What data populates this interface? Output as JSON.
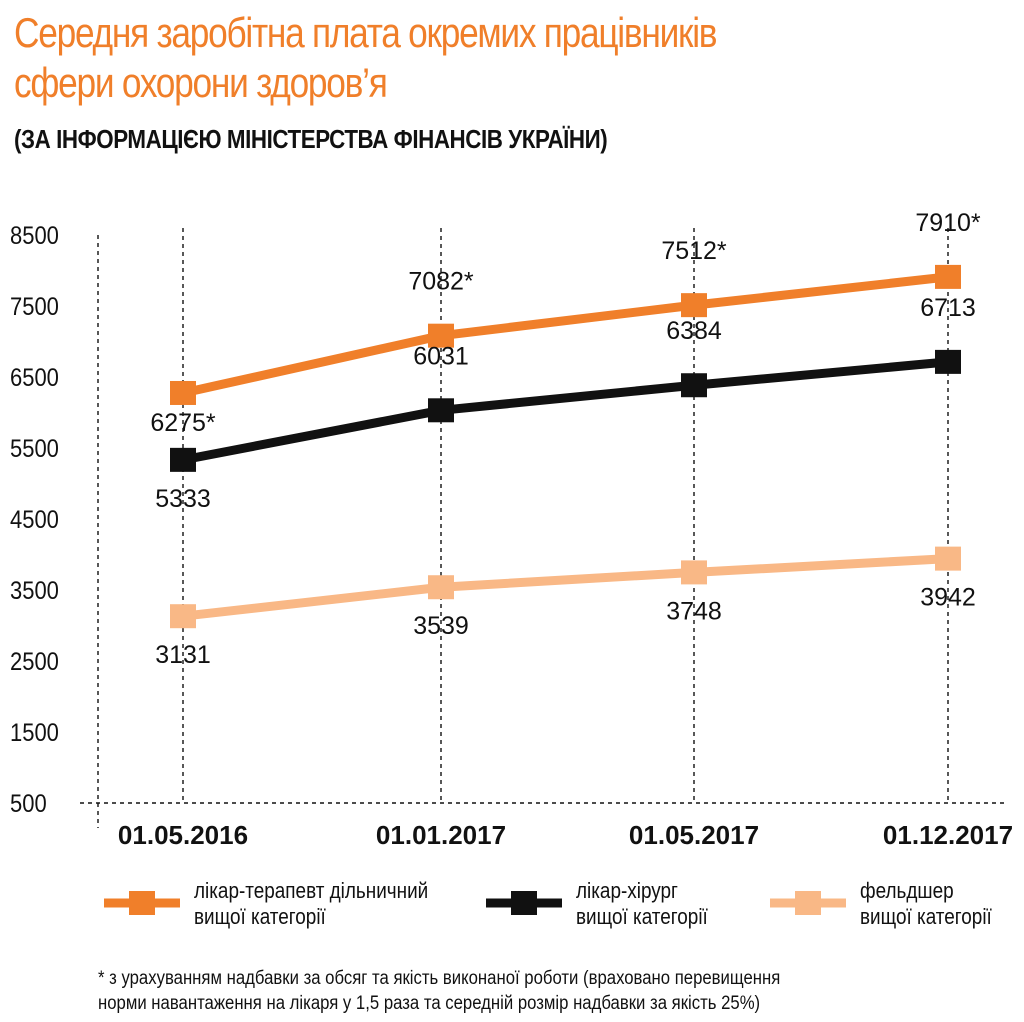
{
  "title_line1": "Середня заробітна плата окремих працівників",
  "title_line2": "сфери охорони здоров’я",
  "subtitle": "(ЗА ІНФОРМАЦІЄЮ МІНІСТЕРСТВА ФІНАНСІВ УКРАЇНИ)",
  "footnote_line1": "* з урахуванням надбавки за обсяг та якість виконаної роботи (враховано перевищення",
  "footnote_line2": "норми навантаження на лікаря у 1,5 раза та середній розмір надбавки за якість 25%)",
  "legend": [
    {
      "line1": "лікар-терапевт дільничний",
      "line2": "вищої категорії",
      "color": "#f07f2a"
    },
    {
      "line1": "лікар-хірург",
      "line2": "вищої категорії",
      "color": "#111111"
    },
    {
      "line1": "фельдшер",
      "line2": "вищої категорії",
      "color": "#f9b886"
    }
  ],
  "chart_data": {
    "type": "line",
    "x": [
      "01.05.2016",
      "01.01.2017",
      "01.05.2017",
      "01.12.2017"
    ],
    "yticks": [
      500,
      1500,
      2500,
      3500,
      4500,
      5500,
      6500,
      7500,
      8500
    ],
    "ylim": [
      500,
      8500
    ],
    "grid": "vertical dashed",
    "legend_position": "bottom",
    "series": [
      {
        "name": "лікар-терапевт дільничний вищої категорії",
        "color": "#f07f2a",
        "values": [
          6275,
          7082,
          7512,
          7910
        ],
        "labels": [
          "6275*",
          "7082*",
          "7512*",
          "7910*"
        ]
      },
      {
        "name": "лікар-хірург вищої категорії",
        "color": "#111111",
        "values": [
          5333,
          6031,
          6384,
          6713
        ],
        "labels": [
          "5333",
          "6031",
          "6384",
          "6713"
        ]
      },
      {
        "name": "фельдшер вищої категорії",
        "color": "#f9b886",
        "values": [
          3131,
          3539,
          3748,
          3942
        ],
        "labels": [
          "3131",
          "3539",
          "3748",
          "3942"
        ]
      }
    ]
  }
}
